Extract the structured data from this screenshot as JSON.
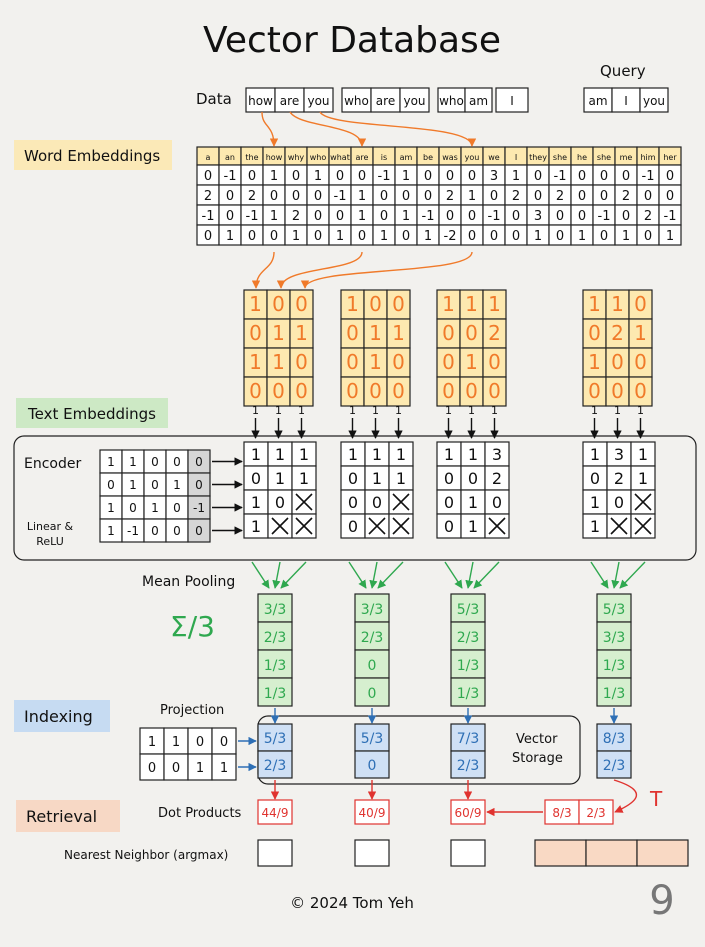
{
  "title": "Vector Database",
  "page_number": "9",
  "copyright": "© 2024 Tom Yeh",
  "data_label": "Data",
  "query_label": "Query",
  "sentences": [
    [
      "how",
      "are",
      "you"
    ],
    [
      "who",
      "are",
      "you"
    ],
    [
      "who",
      "am",
      "I"
    ]
  ],
  "query": [
    "am",
    "I",
    "you"
  ],
  "sections": {
    "word_embeddings": "Word Embeddings",
    "text_embeddings": "Text Embeddings",
    "indexing": "Indexing",
    "retrieval": "Retrieval"
  },
  "labels": {
    "encoder": "Encoder",
    "linear_relu_1": "Linear &",
    "linear_relu_2": "ReLU",
    "mean_pooling": "Mean Pooling",
    "sigma": "Σ/3",
    "projection": "Projection",
    "vector_storage_1": "Vector",
    "vector_storage_2": "Storage",
    "dot_products": "Dot Products",
    "nearest_neighbor": "Nearest Neighbor (argmax)",
    "transpose": "T"
  },
  "vocab": [
    "a",
    "an",
    "the",
    "how",
    "why",
    "who",
    "what",
    "are",
    "is",
    "am",
    "be",
    "was",
    "you",
    "we",
    "I",
    "they",
    "she",
    "he",
    "she",
    "me",
    "him",
    "her"
  ],
  "embedding_matrix": [
    [
      "0",
      "-1",
      "0",
      "1",
      "0",
      "1",
      "0",
      "0",
      "-1",
      "1",
      "0",
      "0",
      "0",
      "3",
      "1",
      "0",
      "-1",
      "0",
      "0",
      "0",
      "-1",
      "0"
    ],
    [
      "2",
      "0",
      "2",
      "0",
      "0",
      "0",
      "-1",
      "1",
      "0",
      "0",
      "0",
      "2",
      "1",
      "0",
      "2",
      "0",
      "2",
      "0",
      "0",
      "2",
      "0",
      "0"
    ],
    [
      "-1",
      "0",
      "-1",
      "1",
      "2",
      "0",
      "0",
      "1",
      "0",
      "1",
      "-1",
      "0",
      "0",
      "-1",
      "0",
      "3",
      "0",
      "0",
      "-1",
      "0",
      "2",
      "-1"
    ],
    [
      "0",
      "1",
      "0",
      "0",
      "1",
      "0",
      "1",
      "0",
      "1",
      "0",
      "1",
      "-2",
      "0",
      "0",
      "0",
      "1",
      "0",
      "1",
      "0",
      "1",
      "0",
      "1"
    ]
  ],
  "input_vectors": [
    [
      [
        "1",
        "0",
        "0"
      ],
      [
        "0",
        "1",
        "1"
      ],
      [
        "1",
        "1",
        "0"
      ],
      [
        "0",
        "0",
        "0"
      ]
    ],
    [
      [
        "1",
        "0",
        "0"
      ],
      [
        "0",
        "1",
        "1"
      ],
      [
        "0",
        "1",
        "0"
      ],
      [
        "0",
        "0",
        "0"
      ]
    ],
    [
      [
        "1",
        "1",
        "1"
      ],
      [
        "0",
        "0",
        "2"
      ],
      [
        "0",
        "1",
        "0"
      ],
      [
        "0",
        "0",
        "0"
      ]
    ],
    [
      [
        "1",
        "1",
        "0"
      ],
      [
        "0",
        "2",
        "1"
      ],
      [
        "1",
        "0",
        "0"
      ],
      [
        "0",
        "0",
        "0"
      ]
    ]
  ],
  "bias_ones": [
    "1",
    "1",
    "1"
  ],
  "encoder_weights": [
    [
      "1",
      "1",
      "0",
      "0",
      "0"
    ],
    [
      "0",
      "1",
      "0",
      "1",
      "0"
    ],
    [
      "1",
      "0",
      "1",
      "0",
      "-1"
    ],
    [
      "1",
      "-1",
      "0",
      "0",
      "0"
    ]
  ],
  "encoder_outputs": [
    [
      [
        "1",
        "1",
        "1"
      ],
      [
        "0",
        "1",
        "1"
      ],
      [
        "1",
        "0",
        "X"
      ],
      [
        "1",
        "X",
        "X"
      ]
    ],
    [
      [
        "1",
        "1",
        "1"
      ],
      [
        "0",
        "1",
        "1"
      ],
      [
        "0",
        "0",
        "X"
      ],
      [
        "0",
        "X",
        "X"
      ]
    ],
    [
      [
        "1",
        "1",
        "3"
      ],
      [
        "0",
        "0",
        "2"
      ],
      [
        "0",
        "1",
        "0"
      ],
      [
        "0",
        "1",
        "X"
      ]
    ],
    [
      [
        "1",
        "3",
        "1"
      ],
      [
        "0",
        "2",
        "1"
      ],
      [
        "1",
        "0",
        "X"
      ],
      [
        "1",
        "X",
        "X"
      ]
    ]
  ],
  "pooled": [
    [
      "3/3",
      "2/3",
      "1/3",
      "1/3"
    ],
    [
      "3/3",
      "2/3",
      "0",
      "0"
    ],
    [
      "5/3",
      "2/3",
      "1/3",
      "1/3"
    ],
    [
      "5/3",
      "3/3",
      "1/3",
      "1/3"
    ]
  ],
  "projection_matrix": [
    [
      "1",
      "1",
      "0",
      "0"
    ],
    [
      "0",
      "0",
      "1",
      "1"
    ]
  ],
  "indexed": [
    [
      "5/3",
      "2/3"
    ],
    [
      "5/3",
      "0"
    ],
    [
      "7/3",
      "2/3"
    ],
    [
      "8/3",
      "2/3"
    ]
  ],
  "query_transposed": [
    "8/3",
    "2/3"
  ],
  "dot_products": [
    "44/9",
    "40/9",
    "60/9"
  ],
  "colors": {
    "orange": "#f07a2a",
    "green": "#2fa84f",
    "blue": "#2e6fb5",
    "red": "#e0332f",
    "yellow_fill": "#fde9b0",
    "green_fill": "#d6efcf",
    "blue_fill": "#cfe0f5",
    "salmon_fill": "#f9d9c4",
    "gray_fill": "#d6d6d6",
    "section_yellow": "#fbe9b7",
    "section_green": "#cde9c5",
    "section_blue": "#c6dbf2",
    "section_salmon": "#f7d8c5"
  }
}
